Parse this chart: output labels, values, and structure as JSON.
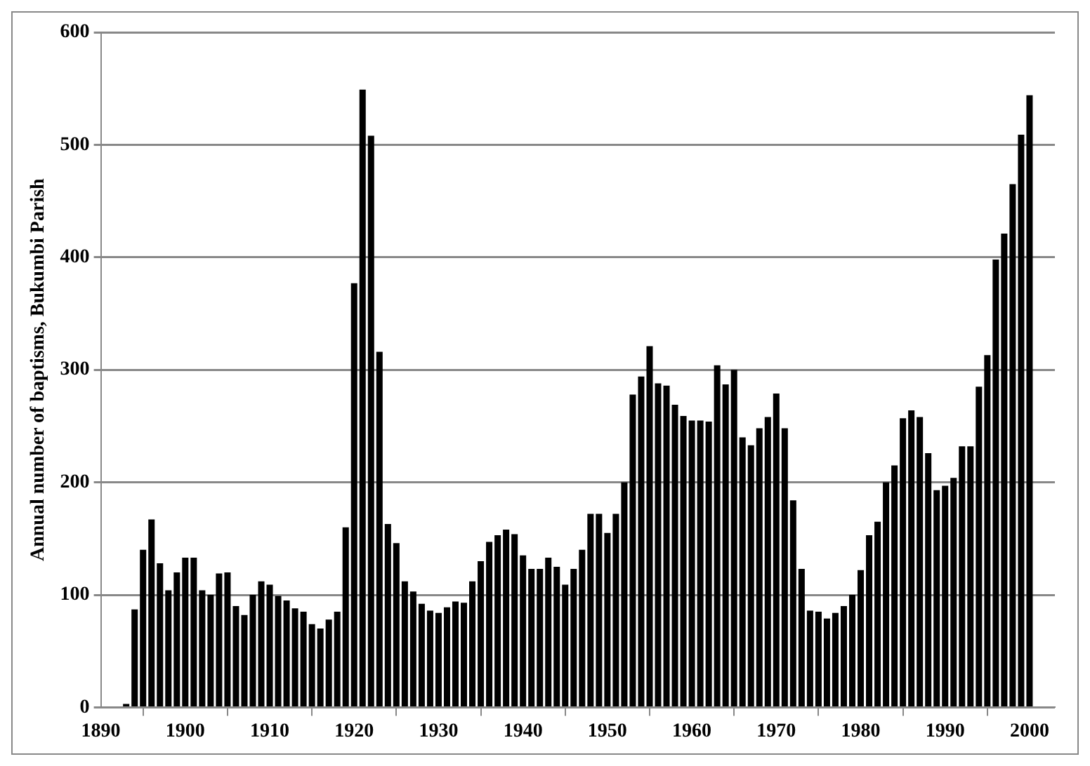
{
  "chart_data": {
    "type": "bar",
    "ylabel": "Annual number of baptisms, Bukumbi Parish",
    "x": [
      1893,
      1894,
      1895,
      1896,
      1897,
      1898,
      1899,
      1900,
      1901,
      1902,
      1903,
      1904,
      1905,
      1906,
      1907,
      1908,
      1909,
      1910,
      1911,
      1912,
      1913,
      1914,
      1915,
      1916,
      1917,
      1918,
      1919,
      1920,
      1921,
      1922,
      1923,
      1924,
      1925,
      1926,
      1927,
      1928,
      1929,
      1930,
      1931,
      1932,
      1933,
      1934,
      1935,
      1936,
      1937,
      1938,
      1939,
      1940,
      1941,
      1942,
      1943,
      1944,
      1945,
      1946,
      1947,
      1948,
      1949,
      1950,
      1951,
      1952,
      1953,
      1954,
      1955,
      1956,
      1957,
      1958,
      1959,
      1960,
      1961,
      1962,
      1963,
      1964,
      1965,
      1966,
      1967,
      1968,
      1969,
      1970,
      1971,
      1972,
      1973,
      1974,
      1975,
      1976,
      1977,
      1978,
      1979,
      1980,
      1981,
      1982,
      1983,
      1984,
      1985,
      1986,
      1987,
      1988,
      1989,
      1990,
      1991,
      1992,
      1993,
      1994,
      1995,
      1996,
      1997,
      1998,
      1999,
      2000
    ],
    "values": [
      3,
      87,
      140,
      167,
      128,
      104,
      120,
      133,
      133,
      104,
      100,
      119,
      120,
      90,
      82,
      100,
      112,
      109,
      99,
      95,
      88,
      85,
      74,
      70,
      78,
      85,
      160,
      377,
      549,
      508,
      316,
      163,
      146,
      112,
      103,
      92,
      86,
      84,
      89,
      94,
      93,
      112,
      130,
      147,
      153,
      158,
      154,
      135,
      123,
      123,
      133,
      125,
      109,
      123,
      140,
      172,
      172,
      155,
      172,
      200,
      278,
      294,
      321,
      288,
      286,
      269,
      259,
      255,
      255,
      254,
      304,
      287,
      300,
      240,
      233,
      248,
      258,
      279,
      248,
      184,
      123,
      86,
      85,
      79,
      84,
      90,
      100,
      122,
      153,
      165,
      200,
      215,
      257,
      264,
      258,
      226,
      193,
      197,
      204,
      232,
      232,
      285,
      313,
      398,
      421,
      465,
      509,
      544
    ],
    "color": "#000000",
    "xlim": [
      1890,
      2003
    ],
    "xticks": [
      1890,
      1900,
      1910,
      1920,
      1930,
      1940,
      1950,
      1960,
      1970,
      1980,
      1990,
      2000
    ],
    "ylim": [
      0,
      600
    ],
    "yticks": [
      0,
      100,
      200,
      300,
      400,
      500,
      600
    ],
    "grid": "y",
    "legend": false
  }
}
